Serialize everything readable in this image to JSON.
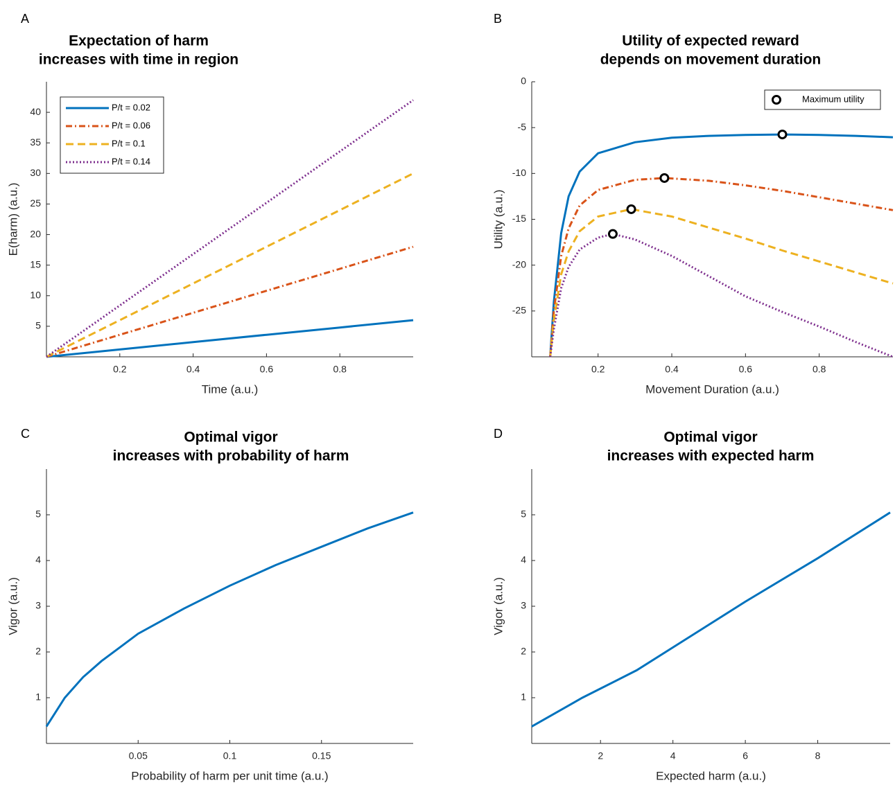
{
  "chart_data": [
    {
      "type": "line",
      "label": "A",
      "title": [
        "Expectation of harm",
        "increases with time in region"
      ],
      "x_label": "Time (a.u.)",
      "y_label": "E(harm) (a.u.)",
      "x": [
        0,
        0.2,
        0.4,
        0.6,
        0.8,
        1
      ],
      "series": [
        {
          "name": "P/t = 0.02",
          "color": "#0072bd",
          "dash": "solid",
          "values": [
            0,
            1.2,
            2.4,
            3.6,
            4.8,
            6
          ]
        },
        {
          "name": "P/t = 0.06",
          "color": "#d95319",
          "dash": "dashdot",
          "values": [
            0,
            3.6,
            7.2,
            10.8,
            14.4,
            18
          ]
        },
        {
          "name": "P/t = 0.1",
          "color": "#edb120",
          "dash": "dashed",
          "values": [
            0,
            6,
            12,
            18,
            24,
            30
          ]
        },
        {
          "name": "P/t = 0.14",
          "color": "#7e2f8e",
          "dash": "dotted",
          "values": [
            0,
            8.4,
            16.8,
            25.2,
            33.6,
            42
          ]
        }
      ],
      "xlim": [
        0,
        1
      ],
      "xticks": [
        0.2,
        0.4,
        0.6,
        0.8
      ],
      "ylim": [
        0,
        45
      ],
      "yticks": [
        5,
        10,
        15,
        20,
        25,
        30,
        35,
        40
      ],
      "legend": "upper left"
    },
    {
      "type": "line",
      "label": "B",
      "title": [
        "Utility of expected reward",
        "depends on movement duration"
      ],
      "x_label": "Movement Duration (a.u.)",
      "y_label": "Utility (a.u.)",
      "series": [
        {
          "color": "#0072bd",
          "dash": "solid",
          "x": [
            0.07,
            0.08,
            0.1,
            0.12,
            0.15,
            0.2,
            0.3,
            0.4,
            0.5,
            0.6,
            0.7,
            0.8,
            0.9,
            1
          ],
          "values": [
            -30,
            -24,
            -16.5,
            -12.5,
            -9.8,
            -7.8,
            -6.6,
            -6.1,
            -5.9,
            -5.8,
            -5.75,
            -5.8,
            -5.9,
            -6.05
          ]
        },
        {
          "color": "#d95319",
          "dash": "dashdot",
          "x": [
            0.07,
            0.08,
            0.1,
            0.12,
            0.15,
            0.2,
            0.3,
            0.38,
            0.5,
            0.6,
            0.7,
            0.8,
            0.9,
            1
          ],
          "values": [
            -30,
            -25,
            -19,
            -16,
            -13.5,
            -11.8,
            -10.7,
            -10.5,
            -10.8,
            -11.3,
            -11.9,
            -12.6,
            -13.3,
            -14
          ]
        },
        {
          "color": "#edb120",
          "dash": "dashed",
          "x": [
            0.07,
            0.08,
            0.1,
            0.12,
            0.15,
            0.2,
            0.29,
            0.4,
            0.5,
            0.6,
            0.7,
            0.8,
            0.9,
            1
          ],
          "values": [
            -30,
            -26,
            -21,
            -18.5,
            -16.3,
            -14.7,
            -13.9,
            -14.7,
            -15.9,
            -17.1,
            -18.4,
            -19.6,
            -20.8,
            -22
          ]
        },
        {
          "color": "#7e2f8e",
          "dash": "dotted",
          "x": [
            0.07,
            0.08,
            0.1,
            0.12,
            0.15,
            0.2,
            0.24,
            0.3,
            0.4,
            0.5,
            0.6,
            0.7,
            0.8,
            0.9,
            1
          ],
          "values": [
            -30,
            -27,
            -22.5,
            -20.2,
            -18.3,
            -17,
            -16.6,
            -17.2,
            -19,
            -21.2,
            -23.4,
            -25.1,
            -26.7,
            -28.4,
            -30
          ]
        }
      ],
      "markers": {
        "name": "Maximum utility",
        "x": [
          0.24,
          0.29,
          0.38,
          0.7
        ],
        "values": [
          -16.6,
          -13.9,
          -10.5,
          -5.75
        ]
      },
      "xlim": [
        0.02,
        1
      ],
      "xticks": [
        0.2,
        0.4,
        0.6,
        0.8
      ],
      "ylim": [
        -30,
        0
      ],
      "yticks": [
        0,
        -5,
        -10,
        -15,
        -20,
        -25
      ],
      "legend": "upper right"
    },
    {
      "type": "line",
      "label": "C",
      "title": [
        "Optimal vigor",
        "increases with probability of harm"
      ],
      "x_label": "Probability of harm per unit time (a.u.)",
      "y_label": "Vigor (a.u.)",
      "x": [
        0,
        0.01,
        0.02,
        0.03,
        0.04,
        0.05,
        0.075,
        0.1,
        0.125,
        0.15,
        0.175,
        0.2
      ],
      "series": [
        {
          "color": "#0072bd",
          "dash": "solid",
          "values": [
            0.37,
            1.0,
            1.45,
            1.8,
            2.1,
            2.4,
            2.95,
            3.45,
            3.9,
            4.3,
            4.7,
            5.05
          ]
        }
      ],
      "xlim": [
        0,
        0.2
      ],
      "xticks": [
        0.05,
        0.1,
        0.15
      ],
      "ylim": [
        0,
        6
      ],
      "yticks": [
        1,
        2,
        3,
        4,
        5
      ]
    },
    {
      "type": "line",
      "label": "D",
      "title": [
        "Optimal vigor",
        "increases with expected harm"
      ],
      "x_label": "Expected harm (a.u.)",
      "y_label": "Vigor (a.u.)",
      "x": [
        0.1,
        1.5,
        3,
        4,
        6,
        8,
        10
      ],
      "series": [
        {
          "color": "#0072bd",
          "dash": "solid",
          "values": [
            0.37,
            1.0,
            1.6,
            2.1,
            3.1,
            4.05,
            5.05
          ]
        }
      ],
      "xlim": [
        0.1,
        10
      ],
      "xticks": [
        2,
        4,
        6,
        8
      ],
      "ylim": [
        0,
        6
      ],
      "yticks": [
        1,
        2,
        3,
        4,
        5
      ]
    }
  ]
}
